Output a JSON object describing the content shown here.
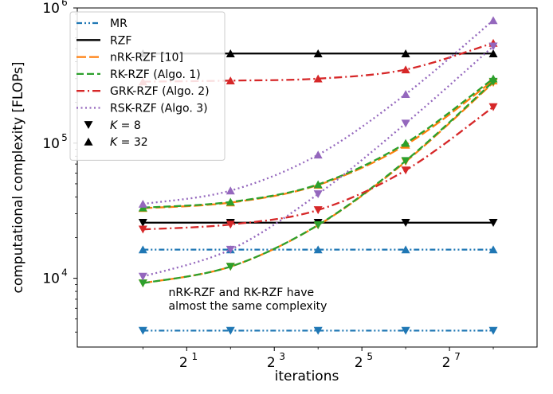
{
  "chart_data": {
    "type": "line",
    "xlabel": "iterations",
    "ylabel": "computational complexity [FLOPs]",
    "xscale": "log2",
    "yscale": "log10",
    "xlim": [
      0.354,
      512
    ],
    "ylim": [
      3100,
      1000000
    ],
    "grid": false,
    "legend_position": "top-left",
    "x": [
      1,
      4,
      16,
      64,
      256
    ],
    "x_ticks": [
      {
        "value": 2,
        "base": "2",
        "exp": "1"
      },
      {
        "value": 8,
        "base": "2",
        "exp": "3"
      },
      {
        "value": 32,
        "base": "2",
        "exp": "5"
      },
      {
        "value": 128,
        "base": "2",
        "exp": "7"
      }
    ],
    "y_ticks": [
      {
        "value": 10000,
        "base": "10",
        "exp": "4"
      },
      {
        "value": 100000,
        "base": "10",
        "exp": "5"
      },
      {
        "value": 1000000,
        "base": "10",
        "exp": "6"
      }
    ],
    "series": [
      {
        "name": "MR",
        "color": "#1f77b4",
        "dash": "dashdotdot",
        "k8": [
          4100,
          4100,
          4100,
          4100,
          4100
        ],
        "k32": [
          16300,
          16300,
          16300,
          16300,
          16300
        ]
      },
      {
        "name": "RZF",
        "color": "#000000",
        "dash": "solid",
        "k8": [
          25800,
          25800,
          25800,
          25800,
          25800
        ],
        "k32": [
          460000,
          460000,
          460000,
          460000,
          460000
        ]
      },
      {
        "name": "nRK-RZF [10]",
        "color": "#ff7f0e",
        "dash": "longdash",
        "k8": [
          9200,
          12200,
          24700,
          73000,
          280000
        ],
        "k32": [
          33000,
          36300,
          49000,
          97000,
          290000
        ]
      },
      {
        "name": "RK-RZF (Algo. 1)",
        "color": "#2ca02c",
        "dash": "dash",
        "k8": [
          9200,
          12200,
          24800,
          74000,
          285000
        ],
        "k32": [
          33300,
          36700,
          49500,
          100000,
          300000
        ]
      },
      {
        "name": "GRK-RZF (Algo. 2)",
        "color": "#d62728",
        "dash": "dashdot",
        "k8": [
          23000,
          25000,
          32000,
          63000,
          185000
        ],
        "k32": [
          285000,
          290000,
          300000,
          350000,
          550000
        ]
      },
      {
        "name": "RSK-RZF (Algo. 3)",
        "color": "#9467bd",
        "dash": "dot",
        "k8": [
          10300,
          16300,
          42000,
          140000,
          520000
        ],
        "k32": [
          35500,
          44500,
          82000,
          230000,
          810000
        ]
      }
    ],
    "markers": [
      {
        "label": "K = 8",
        "var": "K",
        "value": "8",
        "symbol": "triangle-down"
      },
      {
        "label": "K = 32",
        "var": "K",
        "value": "32",
        "symbol": "triangle-up"
      }
    ],
    "annotation": {
      "lines": [
        "nRK-RZF and RK-RZF have",
        "almost the same complexity"
      ],
      "x": 1.5,
      "y": 7400
    }
  }
}
